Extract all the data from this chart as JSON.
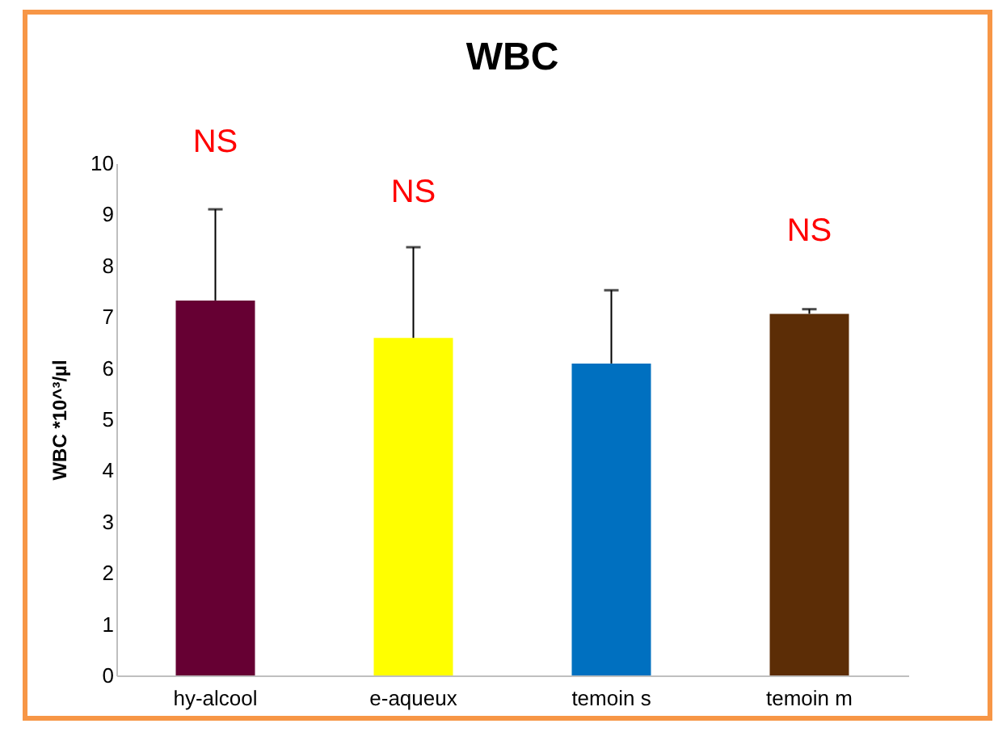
{
  "chart_data": {
    "type": "bar",
    "title": "WBC",
    "ylabel": "WBC *10^³/µl",
    "categories": [
      "hy-alcool",
      "e-aqueux",
      "temoin s",
      "temoin m"
    ],
    "values": [
      7.32,
      6.59,
      6.09,
      7.06
    ],
    "colors": [
      "#660033",
      "#ffff00",
      "#0070c0",
      "#5c2d06"
    ],
    "errors": [
      1.78,
      1.77,
      1.43,
      0.09
    ],
    "ylim": [
      0,
      10
    ],
    "yticks": [
      0,
      1,
      2,
      3,
      4,
      5,
      6,
      7,
      8,
      9,
      10
    ],
    "grid": false,
    "legend": false,
    "annotations": [
      "NS",
      "NS",
      "NS"
    ]
  }
}
